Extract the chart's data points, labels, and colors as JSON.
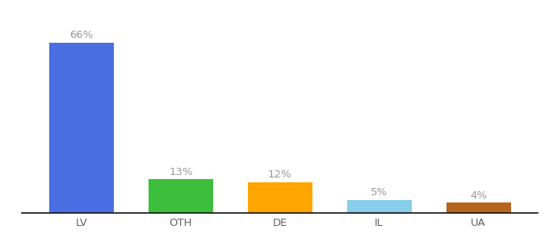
{
  "categories": [
    "LV",
    "OTH",
    "DE",
    "IL",
    "UA"
  ],
  "values": [
    66,
    13,
    12,
    5,
    4
  ],
  "labels": [
    "66%",
    "13%",
    "12%",
    "5%",
    "4%"
  ],
  "bar_colors": [
    "#4A6FE3",
    "#3DBF3D",
    "#FFA500",
    "#87CEEB",
    "#B5651D"
  ],
  "ylim": [
    0,
    76
  ],
  "background_color": "#ffffff",
  "label_fontsize": 9.5,
  "tick_fontsize": 9.5,
  "label_color": "#999999",
  "tick_color": "#666666",
  "bar_width": 0.65
}
